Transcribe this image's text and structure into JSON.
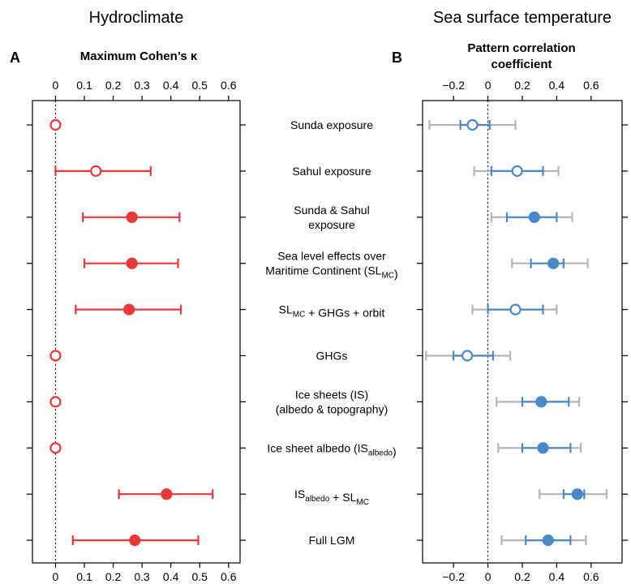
{
  "chart_data": [
    {
      "type": "scatter",
      "panel": "A",
      "column_title": "Hydroclimate",
      "title": "Maximum Cohen’s κ",
      "xlim": [
        -0.08,
        0.64
      ],
      "ticks": [
        "0",
        "0.1",
        "0.2",
        "0.3",
        "0.4",
        "0.5",
        "0.6"
      ],
      "tick_values": [
        0,
        0.1,
        0.2,
        0.3,
        0.4,
        0.5,
        0.6
      ],
      "zero_line": "dotted",
      "colors": {
        "marker": "#e8383b"
      },
      "rows": [
        {
          "value": 0.0,
          "lo": null,
          "hi": null,
          "filled": false
        },
        {
          "value": 0.14,
          "lo": 0.0,
          "hi": 0.33,
          "filled": false
        },
        {
          "value": 0.265,
          "lo": 0.095,
          "hi": 0.43,
          "filled": true
        },
        {
          "value": 0.265,
          "lo": 0.1,
          "hi": 0.425,
          "filled": true
        },
        {
          "value": 0.255,
          "lo": 0.07,
          "hi": 0.435,
          "filled": true
        },
        {
          "value": 0.0,
          "lo": null,
          "hi": null,
          "filled": false
        },
        {
          "value": 0.0,
          "lo": null,
          "hi": null,
          "filled": false
        },
        {
          "value": 0.0,
          "lo": null,
          "hi": null,
          "filled": false
        },
        {
          "value": 0.385,
          "lo": 0.22,
          "hi": 0.545,
          "filled": true
        },
        {
          "value": 0.275,
          "lo": 0.06,
          "hi": 0.495,
          "filled": true
        }
      ]
    },
    {
      "type": "scatter",
      "panel": "B",
      "column_title": "Sea surface temperature",
      "title_lines": [
        "Pattern correlation",
        "coefficient"
      ],
      "xlim": [
        -0.38,
        0.78
      ],
      "ticks": [
        "−0.2",
        "0",
        "0.2",
        "0.4",
        "0.6"
      ],
      "tick_values": [
        -0.2,
        0,
        0.2,
        0.4,
        0.6
      ],
      "zero_line": "dotted",
      "colors": {
        "marker": "#4a88c7",
        "inner_ci": "#4a88c7",
        "outer_ci": "#b5b5b5"
      },
      "rows": [
        {
          "value": -0.09,
          "inner": [
            -0.16,
            0.01
          ],
          "outer": [
            -0.34,
            0.16
          ],
          "filled": false
        },
        {
          "value": 0.17,
          "inner": [
            0.02,
            0.32
          ],
          "outer": [
            -0.08,
            0.41
          ],
          "filled": false
        },
        {
          "value": 0.27,
          "inner": [
            0.11,
            0.4
          ],
          "outer": [
            0.02,
            0.49
          ],
          "filled": true
        },
        {
          "value": 0.38,
          "inner": [
            0.25,
            0.44
          ],
          "outer": [
            0.14,
            0.58
          ],
          "filled": true
        },
        {
          "value": 0.16,
          "inner": [
            0.0,
            0.32
          ],
          "outer": [
            -0.09,
            0.4
          ],
          "filled": false
        },
        {
          "value": -0.12,
          "inner": [
            -0.2,
            0.03
          ],
          "outer": [
            -0.36,
            0.13
          ],
          "filled": false
        },
        {
          "value": 0.31,
          "inner": [
            0.2,
            0.47
          ],
          "outer": [
            0.05,
            0.53
          ],
          "filled": true
        },
        {
          "value": 0.32,
          "inner": [
            0.2,
            0.48
          ],
          "outer": [
            0.06,
            0.54
          ],
          "filled": true
        },
        {
          "value": 0.52,
          "inner": [
            0.44,
            0.56
          ],
          "outer": [
            0.3,
            0.69
          ],
          "filled": true
        },
        {
          "value": 0.35,
          "inner": [
            0.22,
            0.48
          ],
          "outer": [
            0.08,
            0.57
          ],
          "filled": true
        }
      ]
    }
  ],
  "row_labels": [
    {
      "lines": [
        [
          {
            "t": "Sunda exposure"
          }
        ]
      ]
    },
    {
      "lines": [
        [
          {
            "t": "Sahul exposure"
          }
        ]
      ]
    },
    {
      "lines": [
        [
          {
            "t": "Sunda & Sahul"
          }
        ],
        [
          {
            "t": "exposure"
          }
        ]
      ]
    },
    {
      "lines": [
        [
          {
            "t": "Sea level effects over"
          }
        ],
        [
          {
            "t": "Maritime Continent (SL"
          },
          {
            "t": "MC",
            "sub": true
          },
          {
            "t": ")"
          }
        ]
      ]
    },
    {
      "lines": [
        [
          {
            "t": "SL"
          },
          {
            "t": "MC",
            "sub": true
          },
          {
            "t": " + GHGs + orbit"
          }
        ]
      ]
    },
    {
      "lines": [
        [
          {
            "t": "GHGs"
          }
        ]
      ]
    },
    {
      "lines": [
        [
          {
            "t": "Ice sheets (IS)"
          }
        ],
        [
          {
            "t": "(albedo & topography)"
          }
        ]
      ]
    },
    {
      "lines": [
        [
          {
            "t": "Ice sheet albedo (IS"
          },
          {
            "t": "albedo",
            "sub": true
          },
          {
            "t": ")"
          }
        ]
      ]
    },
    {
      "lines": [
        [
          {
            "t": "IS"
          },
          {
            "t": "albedo",
            "sub": true
          },
          {
            "t": " + SL"
          },
          {
            "t": "MC",
            "sub": true
          }
        ]
      ]
    },
    {
      "lines": [
        [
          {
            "t": "Full LGM"
          }
        ]
      ]
    }
  ]
}
